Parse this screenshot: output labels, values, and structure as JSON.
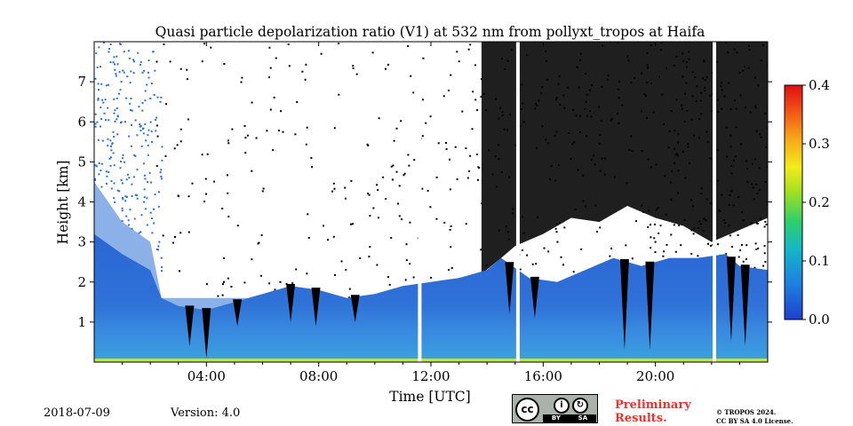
{
  "chart_data": {
    "type": "heatmap",
    "title": "Quasi particle depolarization ratio (V1) at 532 nm from pollyxt_tropos at Haifa",
    "xlabel": "Time [UTC]",
    "ylabel": "Height [km]",
    "xlim_hours": [
      0,
      24
    ],
    "ylim_km": [
      0,
      8
    ],
    "x_ticks": [
      {
        "hour": 4,
        "label": "04:00"
      },
      {
        "hour": 8,
        "label": "08:00"
      },
      {
        "hour": 12,
        "label": "12:00"
      },
      {
        "hour": 16,
        "label": "16:00"
      },
      {
        "hour": 20,
        "label": "20:00"
      }
    ],
    "y_ticks": [
      {
        "km": 1,
        "label": "1"
      },
      {
        "km": 2,
        "label": "2"
      },
      {
        "km": 3,
        "label": "3"
      },
      {
        "km": 4,
        "label": "4"
      },
      {
        "km": 5,
        "label": "5"
      },
      {
        "km": 6,
        "label": "6"
      },
      {
        "km": 7,
        "label": "7"
      }
    ],
    "colorbar": {
      "range": [
        0.0,
        0.4
      ],
      "ticks": [
        "0.0",
        "0.1",
        "0.2",
        "0.3",
        "0.4"
      ],
      "tick_values": [
        0.0,
        0.1,
        0.2,
        0.3,
        0.4
      ]
    },
    "colors": {
      "aerosol_layer": "#2e6fd6",
      "aerosol_light": "#3f8ee0",
      "no_data": "#000000",
      "background": "#ffffff",
      "gap": "#ffffff",
      "ground_strip": "#c8e23a"
    },
    "layer_top_km": [
      [
        0.0,
        3.2
      ],
      [
        1.0,
        2.7
      ],
      [
        2.0,
        2.3
      ],
      [
        2.4,
        1.6
      ],
      [
        3.0,
        1.4
      ],
      [
        4.0,
        1.3
      ],
      [
        5.0,
        1.5
      ],
      [
        6.0,
        1.7
      ],
      [
        7.0,
        1.9
      ],
      [
        8.0,
        1.8
      ],
      [
        9.0,
        1.6
      ],
      [
        10.0,
        1.7
      ],
      [
        11.0,
        1.9
      ],
      [
        12.0,
        2.0
      ],
      [
        13.0,
        2.1
      ],
      [
        14.0,
        2.3
      ],
      [
        14.5,
        2.6
      ],
      [
        15.5,
        2.1
      ],
      [
        16.5,
        2.0
      ],
      [
        17.5,
        2.3
      ],
      [
        18.5,
        2.6
      ],
      [
        19.5,
        2.4
      ],
      [
        20.5,
        2.6
      ],
      [
        21.5,
        2.6
      ],
      [
        22.5,
        2.7
      ],
      [
        23.0,
        2.4
      ],
      [
        24.0,
        2.3
      ]
    ],
    "aerosol_fill_to_km": [
      [
        0.0,
        4.5
      ],
      [
        1.0,
        3.5
      ],
      [
        2.0,
        3.0
      ],
      [
        2.4,
        1.6
      ],
      [
        24.0,
        1.6
      ]
    ],
    "cloud_bottom_km": [
      [
        13.8,
        2.2
      ],
      [
        14.5,
        2.6
      ],
      [
        15.0,
        2.9
      ],
      [
        16.0,
        3.2
      ],
      [
        17.0,
        3.6
      ],
      [
        18.0,
        3.5
      ],
      [
        19.0,
        3.9
      ],
      [
        20.0,
        3.6
      ],
      [
        21.0,
        3.4
      ],
      [
        22.0,
        3.0
      ],
      [
        23.0,
        3.3
      ],
      [
        24.0,
        3.6
      ]
    ],
    "dark_spikes": [
      {
        "hour": 3.4,
        "bottom_km": 0.4
      },
      {
        "hour": 4.0,
        "bottom_km": 0.1
      },
      {
        "hour": 5.1,
        "bottom_km": 0.9
      },
      {
        "hour": 7.0,
        "bottom_km": 1.0
      },
      {
        "hour": 7.9,
        "bottom_km": 0.9
      },
      {
        "hour": 9.3,
        "bottom_km": 1.0
      },
      {
        "hour": 14.8,
        "bottom_km": 1.2
      },
      {
        "hour": 15.7,
        "bottom_km": 1.1
      },
      {
        "hour": 18.9,
        "bottom_km": 0.3
      },
      {
        "hour": 19.8,
        "bottom_km": 0.3
      },
      {
        "hour": 22.7,
        "bottom_km": 0.5
      },
      {
        "hour": 23.2,
        "bottom_km": 0.4
      }
    ],
    "data_gaps_hours": [
      11.6,
      15.1,
      22.1
    ]
  },
  "footer": {
    "date": "2018-07-09",
    "version": "Version: 4.0",
    "license_badge": "cc",
    "license_by": "BY",
    "license_sa": "SA",
    "preliminary_line1": "Preliminary",
    "preliminary_line2": "Results.",
    "copyright_line1": "© TROPOS 2024.",
    "copyright_line2": "CC BY SA 4.0 License."
  }
}
